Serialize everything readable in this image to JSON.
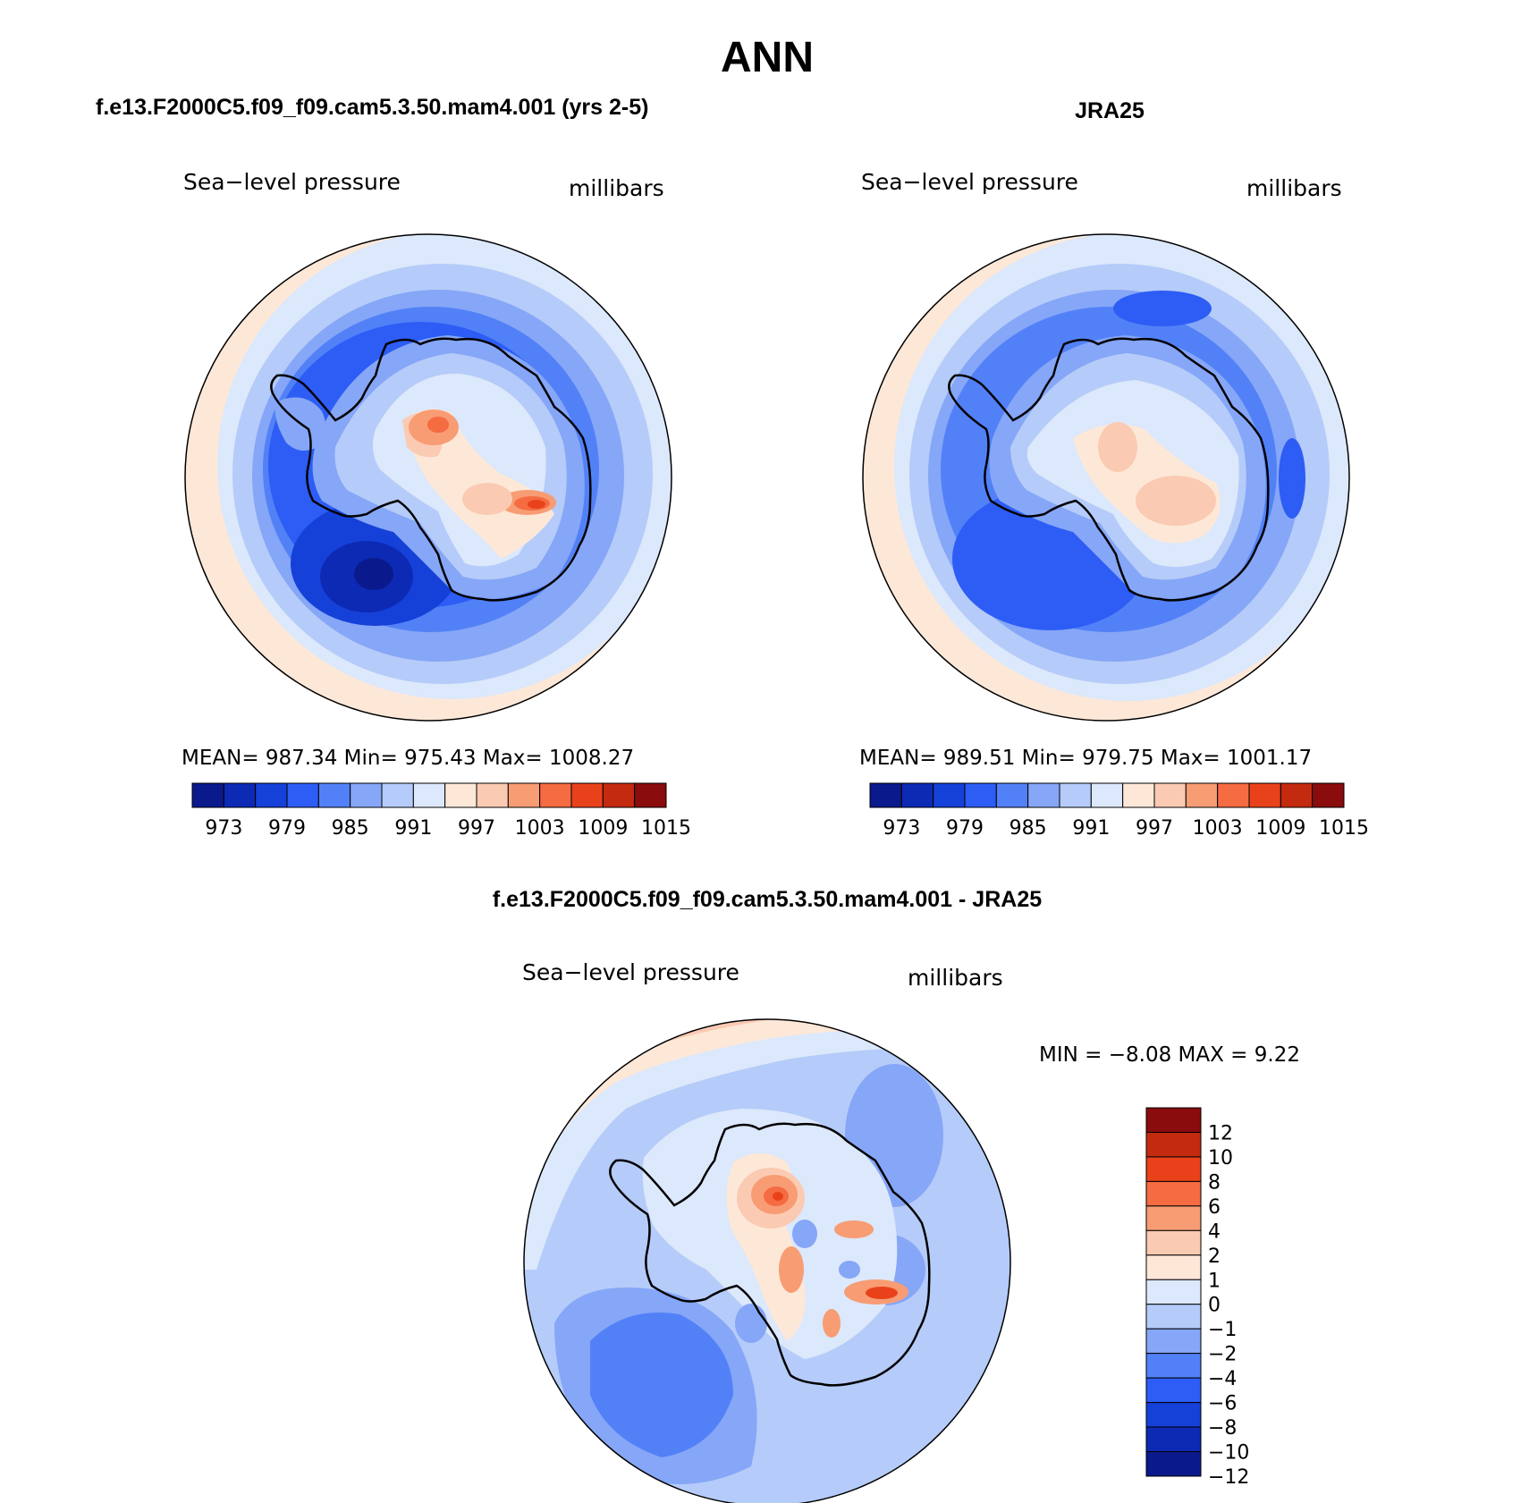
{
  "page_title": "ANN",
  "panels": [
    {
      "heading": "f.e13.F2000C5.f09_f09.cam5.3.50.mam4.001 (yrs 2-5)",
      "variable": "Sea−level pressure",
      "units": "millibars",
      "stats": "MEAN=  987.34   Min=  975.43   Max=  1008.27"
    },
    {
      "heading": "JRA25",
      "variable": "Sea−level pressure",
      "units": "millibars",
      "stats": "MEAN=  989.51   Min=  979.75   Max=  1001.17"
    },
    {
      "heading": "f.e13.F2000C5.f09_f09.cam5.3.50.mam4.001 - JRA25",
      "variable": "Sea−level pressure",
      "units": "millibars",
      "stats": "MIN =   −8.08  MAX =     9.22"
    }
  ],
  "chart_data": [
    {
      "type": "heatmap",
      "projection": "south-polar-stereographic",
      "stats": {
        "mean": 987.34,
        "min": 975.43,
        "max": 1008.27
      },
      "colorbar": {
        "orientation": "horizontal",
        "labels": [
          "973",
          "979",
          "985",
          "991",
          "997",
          "1003",
          "1009",
          "1015"
        ],
        "colors": [
          "#0a1a8c",
          "#0d2ab5",
          "#1541d9",
          "#2d5df5",
          "#5281f7",
          "#86a6f7",
          "#b5cbf9",
          "#dce8fb",
          "#fde8d8",
          "#fbcab2",
          "#f89c74",
          "#f56b42",
          "#e9421b",
          "#c42a10",
          "#8a0c0c"
        ]
      }
    },
    {
      "type": "heatmap",
      "projection": "south-polar-stereographic",
      "stats": {
        "mean": 989.51,
        "min": 979.75,
        "max": 1001.17
      },
      "colorbar": {
        "orientation": "horizontal",
        "labels": [
          "973",
          "979",
          "985",
          "991",
          "997",
          "1003",
          "1009",
          "1015"
        ],
        "colors": [
          "#0a1a8c",
          "#0d2ab5",
          "#1541d9",
          "#2d5df5",
          "#5281f7",
          "#86a6f7",
          "#b5cbf9",
          "#dce8fb",
          "#fde8d8",
          "#fbcab2",
          "#f89c74",
          "#f56b42",
          "#e9421b",
          "#c42a10",
          "#8a0c0c"
        ]
      }
    },
    {
      "type": "heatmap",
      "projection": "south-polar-stereographic",
      "stats": {
        "min": -8.08,
        "max": 9.22
      },
      "colorbar": {
        "orientation": "vertical",
        "labels": [
          "12",
          "10",
          "8",
          "6",
          "4",
          "2",
          "1",
          "0",
          "−1",
          "−2",
          "−4",
          "−6",
          "−8",
          "−10",
          "−12"
        ],
        "colors": [
          "#8a0c0c",
          "#c42a10",
          "#e9421b",
          "#f56b42",
          "#f89c74",
          "#fbcab2",
          "#fde8d8",
          "#dce8fb",
          "#b5cbf9",
          "#86a6f7",
          "#5281f7",
          "#2d5df5",
          "#1541d9",
          "#0d2ab5",
          "#0a1a8c"
        ]
      }
    }
  ]
}
